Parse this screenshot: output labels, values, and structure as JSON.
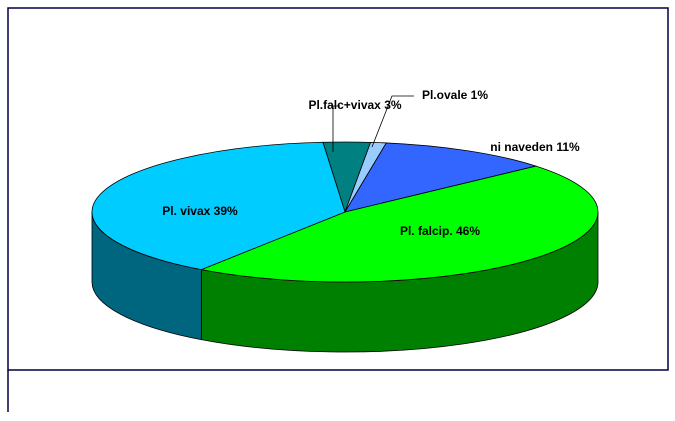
{
  "chart_data": {
    "type": "pie",
    "categories": [
      "Pl.falc+vivax",
      "Pl.ovale",
      "ni naveden",
      "Pl. falcip.",
      "Pl. vivax"
    ],
    "values": [
      3,
      1,
      11,
      46,
      39
    ],
    "value_labels": [
      "3%",
      "1%",
      "11%",
      "46%",
      "39%"
    ],
    "colors": [
      "#008080",
      "#99ccff",
      "#3366ff",
      "#00ff00",
      "#00ccff"
    ]
  }
}
